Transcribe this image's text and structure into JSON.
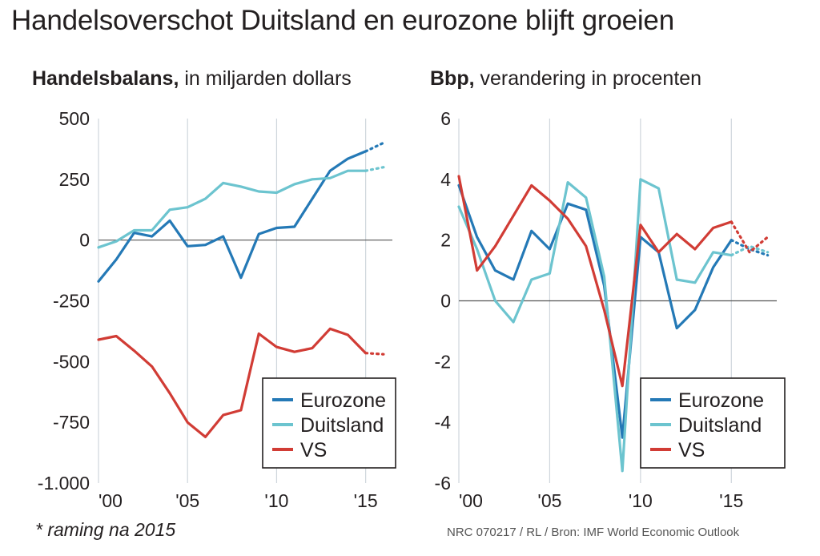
{
  "title": "Handelsoverschot Duitsland en eurozone blijft groeien",
  "footnote": "* raming na 2015",
  "source": "NRC 070217 / RL / Bron: IMF World Economic Outlook",
  "colors": {
    "eurozone": "#2479b6",
    "duitsland": "#6cc4cf",
    "vs": "#d13c35",
    "grid": "#cfd6dc",
    "zero": "#555555"
  },
  "chart_data": [
    {
      "type": "line",
      "title_bold": "Handelsbalans,",
      "title_rest": " in miljarden dollars",
      "xlabel": "",
      "ylabel": "",
      "xlim": [
        2000,
        2016.5
      ],
      "ylim": [
        -1000,
        500
      ],
      "x_ticks": [
        2000,
        2005,
        2010,
        2015
      ],
      "x_tick_labels": [
        "'00",
        "'05",
        "'10",
        "'15"
      ],
      "y_ticks": [
        500,
        250,
        0,
        -250,
        -500,
        -750,
        -1000
      ],
      "y_tick_labels": [
        "500",
        "250",
        "0",
        "-250",
        "-500",
        "-750",
        "-1.000"
      ],
      "legend": [
        "Eurozone",
        "Duitsland",
        "VS"
      ],
      "legend_position": "bottom-right",
      "series": [
        {
          "name": "Eurozone",
          "x": [
            2000,
            2001,
            2002,
            2003,
            2004,
            2005,
            2006,
            2007,
            2008,
            2009,
            2010,
            2011,
            2012,
            2013,
            2014,
            2015
          ],
          "values": [
            -170,
            -80,
            30,
            15,
            80,
            -25,
            -20,
            15,
            -155,
            25,
            50,
            55,
            170,
            285,
            335,
            365
          ],
          "forecast_x": [
            2015,
            2016
          ],
          "forecast_values": [
            365,
            400
          ]
        },
        {
          "name": "Duitsland",
          "x": [
            2000,
            2001,
            2002,
            2003,
            2004,
            2005,
            2006,
            2007,
            2008,
            2009,
            2010,
            2011,
            2012,
            2013,
            2014,
            2015
          ],
          "values": [
            -30,
            -5,
            40,
            40,
            125,
            135,
            170,
            235,
            220,
            200,
            195,
            230,
            250,
            255,
            285,
            285
          ],
          "forecast_x": [
            2015,
            2016
          ],
          "forecast_values": [
            285,
            300
          ]
        },
        {
          "name": "VS",
          "x": [
            2000,
            2001,
            2002,
            2003,
            2004,
            2005,
            2006,
            2007,
            2008,
            2009,
            2010,
            2011,
            2012,
            2013,
            2014,
            2015
          ],
          "values": [
            -410,
            -395,
            -455,
            -520,
            -630,
            -750,
            -810,
            -720,
            -700,
            -385,
            -440,
            -460,
            -445,
            -365,
            -390,
            -465
          ],
          "forecast_x": [
            2015,
            2016
          ],
          "forecast_values": [
            -465,
            -470
          ]
        }
      ]
    },
    {
      "type": "line",
      "title_bold": "Bbp,",
      "title_rest": " verandering in procenten",
      "xlabel": "",
      "ylabel": "",
      "xlim": [
        2000,
        2017.5
      ],
      "ylim": [
        -6,
        6
      ],
      "x_ticks": [
        2000,
        2005,
        2010,
        2015
      ],
      "x_tick_labels": [
        "'00",
        "'05",
        "'10",
        "'15"
      ],
      "y_ticks": [
        6,
        4,
        2,
        0,
        -2,
        -4,
        -6
      ],
      "y_tick_labels": [
        "6",
        "4",
        "2",
        "0",
        "-2",
        "-4",
        "-6"
      ],
      "legend": [
        "Eurozone",
        "Duitsland",
        "VS"
      ],
      "legend_position": "bottom-right",
      "series": [
        {
          "name": "Eurozone",
          "x": [
            2000,
            2001,
            2002,
            2003,
            2004,
            2005,
            2006,
            2007,
            2008,
            2009,
            2010,
            2011,
            2012,
            2013,
            2014,
            2015
          ],
          "values": [
            3.8,
            2.1,
            1.0,
            0.7,
            2.3,
            1.7,
            3.2,
            3.0,
            0.5,
            -4.5,
            2.1,
            1.6,
            -0.9,
            -0.3,
            1.1,
            2.0
          ],
          "forecast_x": [
            2015,
            2016,
            2017
          ],
          "forecast_values": [
            2.0,
            1.7,
            1.5
          ]
        },
        {
          "name": "Duitsland",
          "x": [
            2000,
            2001,
            2002,
            2003,
            2004,
            2005,
            2006,
            2007,
            2008,
            2009,
            2010,
            2011,
            2012,
            2013,
            2014,
            2015
          ],
          "values": [
            3.1,
            1.7,
            0.0,
            -0.7,
            0.7,
            0.9,
            3.9,
            3.4,
            0.8,
            -5.6,
            4.0,
            3.7,
            0.7,
            0.6,
            1.6,
            1.5
          ],
          "forecast_x": [
            2015,
            2016,
            2017
          ],
          "forecast_values": [
            1.5,
            1.8,
            1.6
          ]
        },
        {
          "name": "VS",
          "x": [
            2000,
            2001,
            2002,
            2003,
            2004,
            2005,
            2006,
            2007,
            2008,
            2009,
            2010,
            2011,
            2012,
            2013,
            2014,
            2015
          ],
          "values": [
            4.1,
            1.0,
            1.8,
            2.8,
            3.8,
            3.3,
            2.7,
            1.8,
            -0.3,
            -2.8,
            2.5,
            1.6,
            2.2,
            1.7,
            2.4,
            2.6
          ],
          "forecast_x": [
            2015,
            2016,
            2017
          ],
          "forecast_values": [
            2.6,
            1.6,
            2.1
          ]
        }
      ]
    }
  ]
}
